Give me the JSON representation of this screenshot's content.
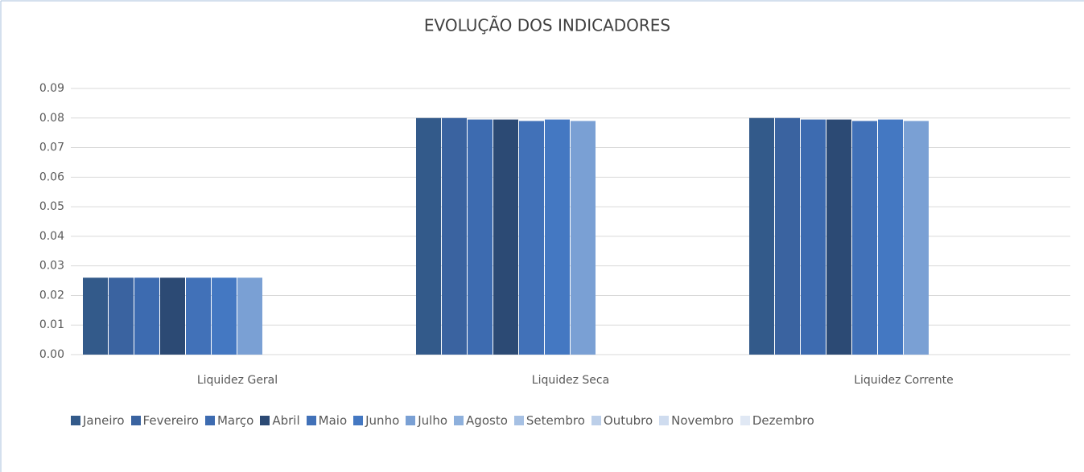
{
  "chart_data": {
    "type": "bar",
    "title": "EVOLUÇÃO DOS INDICADORES",
    "categories": [
      "Liquidez Geral",
      "Liquidez Seca",
      "Liquidez Corrente"
    ],
    "series": [
      {
        "name": "Janeiro",
        "color": "#335a8a",
        "values": [
          0.026,
          0.08,
          0.08
        ]
      },
      {
        "name": "Fevereiro",
        "color": "#3a63a0",
        "values": [
          0.026,
          0.08,
          0.08
        ]
      },
      {
        "name": "Março",
        "color": "#3d6bb0",
        "values": [
          0.026,
          0.0795,
          0.0795
        ]
      },
      {
        "name": "Abril",
        "color": "#2c4a74",
        "values": [
          0.026,
          0.0795,
          0.0795
        ]
      },
      {
        "name": "Maio",
        "color": "#4171b8",
        "values": [
          0.026,
          0.079,
          0.079
        ]
      },
      {
        "name": "Junho",
        "color": "#4478c2",
        "values": [
          0.026,
          0.0795,
          0.0795
        ]
      },
      {
        "name": "Julho",
        "color": "#7aa0d4",
        "values": [
          0.026,
          0.079,
          0.079
        ]
      },
      {
        "name": "Agosto",
        "color": "#8eb0dc",
        "values": [
          null,
          null,
          null
        ]
      },
      {
        "name": "Setembro",
        "color": "#a6c0e3",
        "values": [
          null,
          null,
          null
        ]
      },
      {
        "name": "Outubro",
        "color": "#bccfe9",
        "values": [
          null,
          null,
          null
        ]
      },
      {
        "name": "Novembro",
        "color": "#cfdcef",
        "values": [
          null,
          null,
          null
        ]
      },
      {
        "name": "Dezembro",
        "color": "#e0e8f4",
        "values": [
          null,
          null,
          null
        ]
      }
    ],
    "ylim": [
      0,
      0.09
    ],
    "yticks": [
      {
        "value": 0,
        "label": "0.00"
      },
      0.01,
      0.02,
      0.03,
      0.04,
      0.05,
      0.06,
      0.07,
      0.08,
      0.09
    ],
    "grid": true,
    "legend": "bottom"
  }
}
